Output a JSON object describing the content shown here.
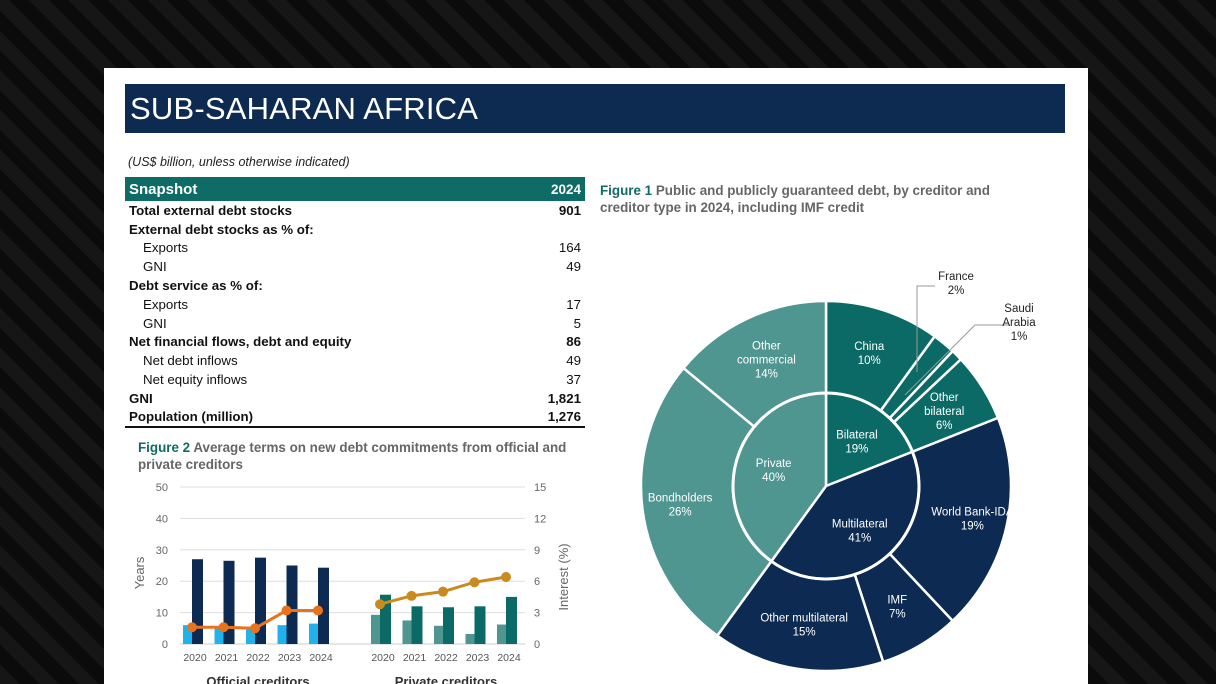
{
  "title": "SUB-SAHARAN AFRICA",
  "units_note": "(US$ billion, unless otherwise indicated)",
  "snapshot": {
    "header": "Snapshot",
    "year": "2024",
    "rows": [
      {
        "label": "Total external debt stocks",
        "value": "901",
        "bold": true
      },
      {
        "label": "External debt stocks as % of:",
        "value": "",
        "bold": true
      },
      {
        "label": "Exports",
        "value": "164",
        "indent": true
      },
      {
        "label": "GNI",
        "value": "49",
        "indent": true
      },
      {
        "label": "Debt service as % of:",
        "value": "",
        "bold": true
      },
      {
        "label": "Exports",
        "value": "17",
        "indent": true
      },
      {
        "label": "GNI",
        "value": "5",
        "indent": true
      },
      {
        "label": "Net financial flows, debt and equity",
        "value": "86",
        "bold": true
      },
      {
        "label": "Net debt inflows",
        "value": "49",
        "indent": true
      },
      {
        "label": "Net equity inflows",
        "value": "37",
        "indent": true
      },
      {
        "label": "GNI",
        "value": "1,821",
        "bold": true
      },
      {
        "label": "Population (million)",
        "value": "1,276",
        "bold": true
      }
    ]
  },
  "figure1": {
    "number": "Figure 1",
    "title": "Public and publicly guaranteed debt, by creditor and creditor type in 2024, including IMF credit"
  },
  "figure2": {
    "number": "Figure 2",
    "title": "Average terms on new debt commitments from official and private creditors"
  },
  "chart_data": [
    {
      "type": "pie",
      "variant": "donut-sunburst",
      "inner": [
        {
          "label": "Bilateral",
          "value": 19,
          "color": "#0b6a66"
        },
        {
          "label": "Multilateral",
          "value": 41,
          "color": "#0c2a52"
        },
        {
          "label": "Private",
          "value": 40,
          "color": "#4f9590"
        }
      ],
      "outer": [
        {
          "label": "China",
          "value": 10,
          "group": "Bilateral"
        },
        {
          "label": "France",
          "value": 2,
          "group": "Bilateral"
        },
        {
          "label": "Saudi Arabia",
          "value": 1,
          "group": "Bilateral"
        },
        {
          "label": "Other bilateral",
          "value": 6,
          "group": "Bilateral"
        },
        {
          "label": "World Bank-IDA",
          "value": 19,
          "group": "Multilateral"
        },
        {
          "label": "IMF",
          "value": 7,
          "group": "Multilateral"
        },
        {
          "label": "Other multilateral",
          "value": 15,
          "group": "Multilateral"
        },
        {
          "label": "Bondholders",
          "value": 26,
          "group": "Private"
        },
        {
          "label": "Other commercial",
          "value": 14,
          "group": "Private"
        }
      ]
    },
    {
      "type": "bar",
      "ylabel": "Years",
      "y2label": "Interest (%)",
      "ylim": [
        0,
        50
      ],
      "y2lim": [
        0,
        15
      ],
      "yticks": [
        "0",
        "10",
        "20",
        "30",
        "40",
        "50"
      ],
      "y2ticks": [
        "0",
        "3",
        "6",
        "9",
        "12",
        "15"
      ],
      "groups": [
        {
          "label": "Official creditors",
          "categories": [
            "2020",
            "2021",
            "2022",
            "2023",
            "2024"
          ],
          "light": [
            6,
            5,
            5,
            6,
            6.5
          ],
          "dark": [
            27,
            26.5,
            27.5,
            25,
            24.3
          ],
          "line": [
            1.6,
            1.6,
            1.5,
            3.2,
            3.2
          ],
          "colors": {
            "light": "#20b2ea",
            "dark": "#0c2a52",
            "line": "#e8731e"
          }
        },
        {
          "label": "Private creditors",
          "categories": [
            "2020",
            "2021",
            "2022",
            "2023",
            "2024"
          ],
          "light": [
            9.3,
            7.5,
            5.8,
            3.2,
            6.2
          ],
          "dark": [
            15.7,
            12,
            11.7,
            12,
            15
          ],
          "line": [
            3.8,
            4.6,
            5,
            5.9,
            6.4
          ],
          "colors": {
            "light": "#4f9590",
            "dark": "#0b6a66",
            "line": "#c98a1f"
          }
        }
      ]
    }
  ]
}
